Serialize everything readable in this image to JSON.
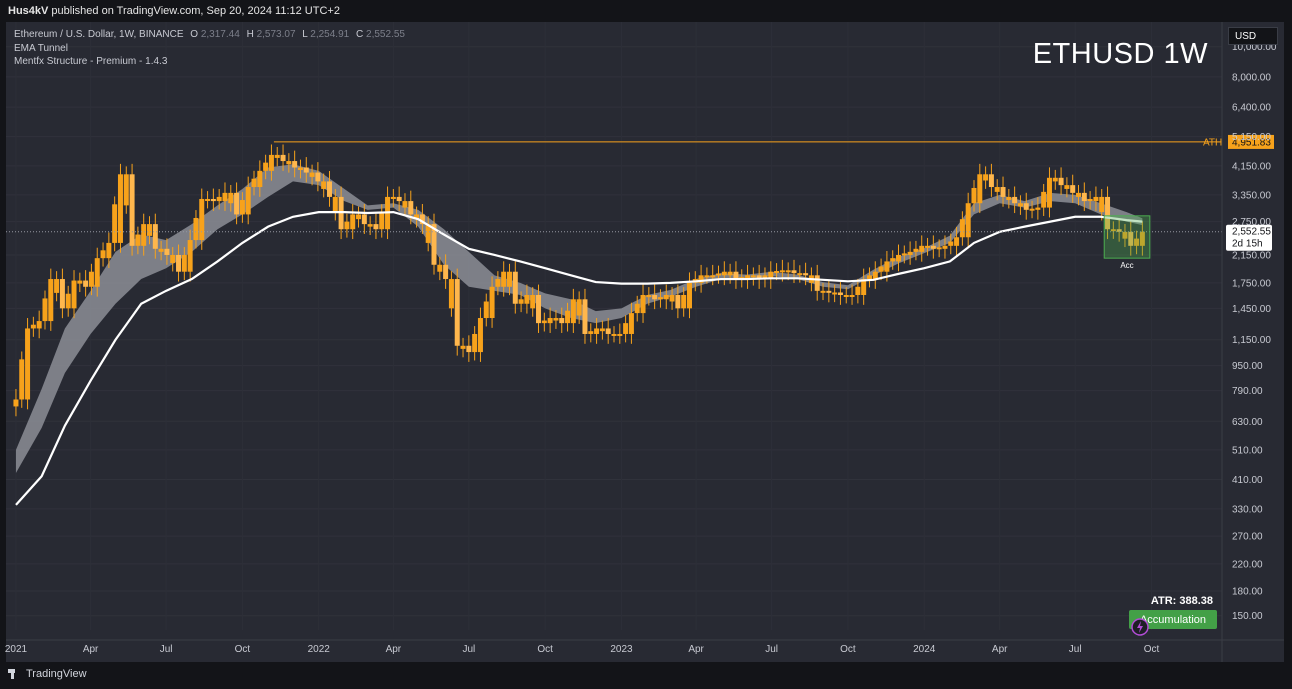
{
  "header": {
    "publisher": "Hus4kV",
    "published_text": "published on TradingView.com, Sep 20, 2024 11:12 UTC+2"
  },
  "legend": {
    "symbol_line": "Ethereum / U.S. Dollar, 1W, BINANCE",
    "ohlc": [
      {
        "k": "O",
        "v": "2,317.44"
      },
      {
        "k": "H",
        "v": "2,573.07"
      },
      {
        "k": "L",
        "v": "2,254.91"
      },
      {
        "k": "C",
        "v": "2,552.55"
      }
    ],
    "indicators": [
      "EMA Tunnel",
      "Mentfx Structure - Premium - 1.4.3"
    ]
  },
  "title": "ETHUSD 1W",
  "currency_button": "USD",
  "footer_brand": "TradingView",
  "colors": {
    "background": "#282a33",
    "candle_up": "#f7a21b",
    "ema_line": "#ffffff",
    "tunnel_fill": "#8c8e96",
    "ath_line": "#f7a21b",
    "accumulation_box": "#4caf50"
  },
  "chart_data": {
    "type": "line",
    "series": [],
    "price_scale": "log",
    "ylim": [
      135,
      12000
    ],
    "y_ticks": [
      "10,000.00",
      "8,000.00",
      "6,400.00",
      "5,150.00",
      "4,150.00",
      "3,350.00",
      "2,750.00",
      "2,150.00",
      "1,750.00",
      "1,450.00",
      "1,150.00",
      "950.00",
      "790.00",
      "630.00",
      "510.00",
      "410.00",
      "330.00",
      "270.00",
      "220.00",
      "180.00",
      "150.00"
    ],
    "x_ticks": [
      "2021",
      "Apr",
      "Jul",
      "Oct",
      "2022",
      "Apr",
      "Jul",
      "Oct",
      "2023",
      "Apr",
      "Jul",
      "Oct",
      "2024",
      "Apr",
      "Jul",
      "Oct"
    ],
    "x_tick_dates": [
      "2021-01-01",
      "2021-04-01",
      "2021-07-01",
      "2021-10-01",
      "2022-01-01",
      "2022-04-01",
      "2022-07-01",
      "2022-10-01",
      "2023-01-01",
      "2023-04-01",
      "2023-07-01",
      "2023-10-01",
      "2024-01-01",
      "2024-04-01",
      "2024-07-01",
      "2024-10-01"
    ],
    "ath": {
      "label": "ATH",
      "value": 4951.83,
      "value_label": "4,951.83"
    },
    "last_price": {
      "value": 2552.55,
      "label": "2,552.55",
      "countdown": "2d 15h"
    },
    "atr_label": "ATR: 388.38",
    "accumulation_label": "Accumulation",
    "box_label": "Acc",
    "closes": [
      [
        "2021-01-01",
        740
      ],
      [
        "2021-01-15",
        1250
      ],
      [
        "2021-01-29",
        1320
      ],
      [
        "2021-02-12",
        1800
      ],
      [
        "2021-02-26",
        1450
      ],
      [
        "2021-03-12",
        1780
      ],
      [
        "2021-03-26",
        1700
      ],
      [
        "2021-04-09",
        2100
      ],
      [
        "2021-04-23",
        2350
      ],
      [
        "2021-05-07",
        3900
      ],
      [
        "2021-05-21",
        2300
      ],
      [
        "2021-06-04",
        2700
      ],
      [
        "2021-06-18",
        2250
      ],
      [
        "2021-07-02",
        2150
      ],
      [
        "2021-07-16",
        1900
      ],
      [
        "2021-07-30",
        2400
      ],
      [
        "2021-08-13",
        3250
      ],
      [
        "2021-08-27",
        3200
      ],
      [
        "2021-09-10",
        3400
      ],
      [
        "2021-09-24",
        2900
      ],
      [
        "2021-10-08",
        3550
      ],
      [
        "2021-10-22",
        4000
      ],
      [
        "2021-11-05",
        4500
      ],
      [
        "2021-11-19",
        4300
      ],
      [
        "2021-12-03",
        4100
      ],
      [
        "2021-12-17",
        3950
      ],
      [
        "2021-12-31",
        3700
      ],
      [
        "2022-01-14",
        3300
      ],
      [
        "2022-01-28",
        2600
      ],
      [
        "2022-02-11",
        2900
      ],
      [
        "2022-02-25",
        2700
      ],
      [
        "2022-03-11",
        2600
      ],
      [
        "2022-03-25",
        3300
      ],
      [
        "2022-04-08",
        3200
      ],
      [
        "2022-04-22",
        2900
      ],
      [
        "2022-05-06",
        2700
      ],
      [
        "2022-05-20",
        2000
      ],
      [
        "2022-06-03",
        1800
      ],
      [
        "2022-06-17",
        1100
      ],
      [
        "2022-07-01",
        1050
      ],
      [
        "2022-07-15",
        1350
      ],
      [
        "2022-07-29",
        1700
      ],
      [
        "2022-08-12",
        1900
      ],
      [
        "2022-08-26",
        1500
      ],
      [
        "2022-09-09",
        1600
      ],
      [
        "2022-09-23",
        1300
      ],
      [
        "2022-10-07",
        1350
      ],
      [
        "2022-10-21",
        1300
      ],
      [
        "2022-11-04",
        1550
      ],
      [
        "2022-11-18",
        1200
      ],
      [
        "2022-12-02",
        1250
      ],
      [
        "2022-12-16",
        1200
      ],
      [
        "2022-12-30",
        1200
      ],
      [
        "2023-01-13",
        1400
      ],
      [
        "2023-01-27",
        1600
      ],
      [
        "2023-02-10",
        1550
      ],
      [
        "2023-02-24",
        1600
      ],
      [
        "2023-03-10",
        1450
      ],
      [
        "2023-03-24",
        1750
      ],
      [
        "2023-04-07",
        1850
      ],
      [
        "2023-04-21",
        1850
      ],
      [
        "2023-05-05",
        1900
      ],
      [
        "2023-05-19",
        1800
      ],
      [
        "2023-06-02",
        1850
      ],
      [
        "2023-06-16",
        1800
      ],
      [
        "2023-06-30",
        1900
      ],
      [
        "2023-07-14",
        1920
      ],
      [
        "2023-07-28",
        1880
      ],
      [
        "2023-08-11",
        1850
      ],
      [
        "2023-08-25",
        1650
      ],
      [
        "2023-09-08",
        1630
      ],
      [
        "2023-09-22",
        1600
      ],
      [
        "2023-10-06",
        1600
      ],
      [
        "2023-10-20",
        1800
      ],
      [
        "2023-11-03",
        1900
      ],
      [
        "2023-11-17",
        2050
      ],
      [
        "2023-12-01",
        2150
      ],
      [
        "2023-12-15",
        2200
      ],
      [
        "2023-12-29",
        2300
      ],
      [
        "2024-01-12",
        2250
      ],
      [
        "2024-01-26",
        2300
      ],
      [
        "2024-02-09",
        2450
      ],
      [
        "2024-02-23",
        3150
      ],
      [
        "2024-03-08",
        3900
      ],
      [
        "2024-03-22",
        3550
      ],
      [
        "2024-04-05",
        3300
      ],
      [
        "2024-04-19",
        3150
      ],
      [
        "2024-05-03",
        3000
      ],
      [
        "2024-05-17",
        3050
      ],
      [
        "2024-05-31",
        3800
      ],
      [
        "2024-06-14",
        3600
      ],
      [
        "2024-06-28",
        3400
      ],
      [
        "2024-07-12",
        3200
      ],
      [
        "2024-07-26",
        3300
      ],
      [
        "2024-08-09",
        2600
      ],
      [
        "2024-08-23",
        2550
      ],
      [
        "2024-09-06",
        2300
      ],
      [
        "2024-09-20",
        2552.55
      ]
    ],
    "ema_line": [
      [
        "2021-01-01",
        340
      ],
      [
        "2021-02-01",
        420
      ],
      [
        "2021-03-01",
        610
      ],
      [
        "2021-04-01",
        850
      ],
      [
        "2021-05-01",
        1150
      ],
      [
        "2021-06-01",
        1500
      ],
      [
        "2021-07-01",
        1650
      ],
      [
        "2021-08-01",
        1800
      ],
      [
        "2021-09-01",
        2050
      ],
      [
        "2021-10-01",
        2350
      ],
      [
        "2021-11-01",
        2650
      ],
      [
        "2021-12-01",
        2850
      ],
      [
        "2022-01-01",
        2950
      ],
      [
        "2022-02-01",
        2950
      ],
      [
        "2022-03-01",
        2930
      ],
      [
        "2022-04-01",
        2950
      ],
      [
        "2022-05-01",
        2800
      ],
      [
        "2022-06-01",
        2500
      ],
      [
        "2022-07-01",
        2250
      ],
      [
        "2022-08-01",
        2150
      ],
      [
        "2022-09-01",
        2050
      ],
      [
        "2022-10-01",
        1950
      ],
      [
        "2022-11-01",
        1850
      ],
      [
        "2022-12-01",
        1760
      ],
      [
        "2023-01-01",
        1740
      ],
      [
        "2023-02-01",
        1740
      ],
      [
        "2023-03-01",
        1750
      ],
      [
        "2023-04-01",
        1770
      ],
      [
        "2023-05-01",
        1800
      ],
      [
        "2023-06-01",
        1800
      ],
      [
        "2023-07-01",
        1810
      ],
      [
        "2023-08-01",
        1810
      ],
      [
        "2023-09-01",
        1790
      ],
      [
        "2023-10-01",
        1770
      ],
      [
        "2023-11-01",
        1790
      ],
      [
        "2023-12-01",
        1870
      ],
      [
        "2024-01-01",
        1950
      ],
      [
        "2024-02-01",
        2050
      ],
      [
        "2024-03-01",
        2350
      ],
      [
        "2024-04-01",
        2550
      ],
      [
        "2024-05-01",
        2650
      ],
      [
        "2024-06-01",
        2750
      ],
      [
        "2024-07-01",
        2850
      ],
      [
        "2024-08-01",
        2850
      ],
      [
        "2024-09-01",
        2780
      ],
      [
        "2024-09-20",
        2750
      ]
    ],
    "tunnel": [
      [
        "2021-01-01",
        430,
        510
      ],
      [
        "2021-02-01",
        600,
        800
      ],
      [
        "2021-03-01",
        900,
        1250
      ],
      [
        "2021-04-01",
        1200,
        1650
      ],
      [
        "2021-05-01",
        1500,
        2200
      ],
      [
        "2021-06-01",
        1800,
        2500
      ],
      [
        "2021-07-01",
        1950,
        2400
      ],
      [
        "2021-08-01",
        2200,
        2700
      ],
      [
        "2021-09-01",
        2600,
        3100
      ],
      [
        "2021-10-01",
        2900,
        3500
      ],
      [
        "2021-11-01",
        3300,
        4100
      ],
      [
        "2021-12-01",
        3700,
        4200
      ],
      [
        "2022-01-01",
        3600,
        4000
      ],
      [
        "2022-02-01",
        3200,
        3500
      ],
      [
        "2022-03-01",
        3000,
        3100
      ],
      [
        "2022-04-01",
        3050,
        3150
      ],
      [
        "2022-05-01",
        2650,
        3000
      ],
      [
        "2022-06-01",
        2000,
        2600
      ],
      [
        "2022-07-01",
        1700,
        2200
      ],
      [
        "2022-08-01",
        1650,
        1850
      ],
      [
        "2022-09-01",
        1600,
        1750
      ],
      [
        "2022-10-01",
        1450,
        1620
      ],
      [
        "2022-11-01",
        1350,
        1550
      ],
      [
        "2022-12-01",
        1300,
        1420
      ],
      [
        "2023-01-01",
        1350,
        1450
      ],
      [
        "2023-02-01",
        1500,
        1600
      ],
      [
        "2023-03-01",
        1580,
        1660
      ],
      [
        "2023-04-01",
        1700,
        1800
      ],
      [
        "2023-05-01",
        1800,
        1880
      ],
      [
        "2023-06-01",
        1800,
        1860
      ],
      [
        "2023-07-01",
        1840,
        1900
      ],
      [
        "2023-08-01",
        1800,
        1860
      ],
      [
        "2023-09-01",
        1700,
        1760
      ],
      [
        "2023-10-01",
        1670,
        1720
      ],
      [
        "2023-11-01",
        1850,
        1930
      ],
      [
        "2023-12-01",
        2020,
        2120
      ],
      [
        "2024-01-01",
        2180,
        2260
      ],
      [
        "2024-02-01",
        2350,
        2480
      ],
      [
        "2024-03-01",
        2900,
        3150
      ],
      [
        "2024-04-01",
        3150,
        3350
      ],
      [
        "2024-05-01",
        3050,
        3200
      ],
      [
        "2024-06-01",
        3200,
        3400
      ],
      [
        "2024-07-01",
        3150,
        3350
      ],
      [
        "2024-08-01",
        2900,
        3150
      ],
      [
        "2024-09-01",
        2750,
        2950
      ],
      [
        "2024-09-20",
        2680,
        2820
      ]
    ],
    "accumulation_zone": {
      "x_from": "2024-08-05",
      "x_to": "2024-09-29",
      "y_low": 2100,
      "y_high": 2870
    }
  }
}
